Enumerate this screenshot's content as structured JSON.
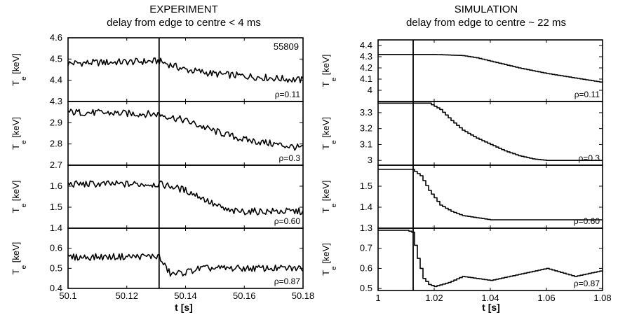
{
  "chart_data": [
    {
      "type": "line",
      "column_title": "EXPERIMENT",
      "column_subtitle": "delay from edge to centre < 4 ms",
      "xlabel": "t [s]",
      "xlim": [
        50.1,
        50.18
      ],
      "xticks": [
        50.1,
        50.12,
        50.14,
        50.16,
        50.18
      ],
      "xtick_labels": [
        "50.1",
        "50.12",
        "50.14",
        "50.16",
        "50.18"
      ],
      "marker_line_x": 50.131,
      "shot_number": "55809",
      "panels": [
        {
          "rho_label": "ρ=0.11",
          "ylabel": "T_e [keV]",
          "ylim": [
            4.3,
            4.6
          ],
          "yticks": [
            4.3,
            4.4,
            4.5,
            4.6
          ],
          "ytick_labels": [
            "4.3",
            "4.4",
            "4.5",
            "4.6"
          ],
          "series": [
            {
              "x": [
                50.1,
                50.131,
                50.14,
                50.15,
                50.16,
                50.17,
                50.18
              ],
              "y": [
                4.48,
                4.49,
                4.45,
                4.43,
                4.42,
                4.41,
                4.4
              ]
            }
          ]
        },
        {
          "rho_label": "ρ=0.3",
          "ylabel": "T_e [keV]",
          "ylim": [
            2.7,
            3.0
          ],
          "yticks": [
            2.7,
            2.8,
            2.9
          ],
          "ytick_labels": [
            "2.7",
            "2.8",
            "2.9"
          ],
          "series": [
            {
              "x": [
                50.1,
                50.131,
                50.14,
                50.15,
                50.16,
                50.17,
                50.18
              ],
              "y": [
                2.95,
                2.94,
                2.91,
                2.86,
                2.82,
                2.8,
                2.78
              ]
            }
          ]
        },
        {
          "rho_label": "ρ=0.60",
          "ylabel": "T_e [keV]",
          "ylim": [
            1.4,
            1.7
          ],
          "yticks": [
            1.4,
            1.5,
            1.6
          ],
          "ytick_labels": [
            "1.4",
            "1.5",
            "1.6"
          ],
          "series": [
            {
              "x": [
                50.1,
                50.131,
                50.135,
                50.14,
                50.145,
                50.15,
                50.155,
                50.18
              ],
              "y": [
                1.61,
                1.61,
                1.6,
                1.58,
                1.55,
                1.51,
                1.48,
                1.48
              ]
            }
          ]
        },
        {
          "rho_label": "ρ=0.87",
          "ylabel": "T_e [keV]",
          "ylim": [
            0.4,
            0.7
          ],
          "yticks": [
            0.4,
            0.5,
            0.6
          ],
          "ytick_labels": [
            "0.4",
            "0.5",
            "0.6"
          ],
          "series": [
            {
              "x": [
                50.1,
                50.131,
                50.132,
                50.135,
                50.14,
                50.145,
                50.18
              ],
              "y": [
                0.555,
                0.56,
                0.53,
                0.47,
                0.48,
                0.5,
                0.5
              ]
            }
          ]
        }
      ]
    },
    {
      "type": "line",
      "column_title": "SIMULATION",
      "column_subtitle": "delay from edge to centre ~ 22 ms",
      "xlabel": "t [s]",
      "xlim": [
        1.0,
        1.08
      ],
      "xticks": [
        1.0,
        1.02,
        1.04,
        1.06,
        1.08
      ],
      "xtick_labels": [
        "1",
        "1.02",
        "1.04",
        "1.06",
        "1.08"
      ],
      "marker_line_x": 1.0125,
      "panels": [
        {
          "rho_label": "ρ=0.11",
          "ylabel": "T_e [keV]",
          "ylim": [
            3.9,
            4.45
          ],
          "yticks": [
            4.0,
            4.1,
            4.2,
            4.3,
            4.4
          ],
          "ytick_labels": [
            "4",
            "4.1",
            "4.2",
            "4.3",
            "4.4"
          ],
          "series": [
            {
              "x": [
                1.0,
                1.01,
                1.02,
                1.03,
                1.035,
                1.04,
                1.05,
                1.06,
                1.07,
                1.08
              ],
              "y": [
                4.32,
                4.32,
                4.32,
                4.31,
                4.29,
                4.26,
                4.2,
                4.15,
                4.11,
                4.07
              ]
            }
          ]
        },
        {
          "rho_label": "ρ=0.3",
          "ylabel": "T_e [keV]",
          "ylim": [
            2.97,
            3.37
          ],
          "yticks": [
            3.0,
            3.1,
            3.2,
            3.3
          ],
          "ytick_labels": [
            "3",
            "3.1",
            "3.2",
            "3.3"
          ],
          "series": [
            {
              "x": [
                1.0,
                1.018,
                1.022,
                1.026,
                1.03,
                1.035,
                1.04,
                1.045,
                1.05,
                1.055,
                1.06,
                1.07,
                1.08
              ],
              "y": [
                3.36,
                3.36,
                3.32,
                3.25,
                3.19,
                3.14,
                3.1,
                3.06,
                3.03,
                3.01,
                3.0,
                3.0,
                3.0
              ]
            }
          ]
        },
        {
          "rho_label": "ρ=0.60",
          "ylabel": "T_e [keV]",
          "ylim": [
            1.3,
            1.6
          ],
          "yticks": [
            1.3,
            1.4,
            1.5
          ],
          "ytick_labels": [
            "1.3",
            "1.4",
            "1.5"
          ],
          "series": [
            {
              "x": [
                1.0,
                1.012,
                1.015,
                1.018,
                1.022,
                1.026,
                1.03,
                1.035,
                1.04,
                1.05,
                1.06,
                1.08
              ],
              "y": [
                1.58,
                1.58,
                1.55,
                1.48,
                1.41,
                1.38,
                1.36,
                1.35,
                1.34,
                1.34,
                1.34,
                1.34
              ]
            }
          ]
        },
        {
          "rho_label": "ρ=0.87",
          "ylabel": "T_e [keV]",
          "ylim": [
            0.49,
            0.8
          ],
          "yticks": [
            0.5,
            0.6,
            0.7
          ],
          "ytick_labels": [
            "0.5",
            "0.6",
            "0.7"
          ],
          "series": [
            {
              "x": [
                1.0,
                1.01,
                1.012,
                1.014,
                1.016,
                1.018,
                1.02,
                1.025,
                1.03,
                1.04,
                1.05,
                1.06,
                1.07,
                1.08
              ],
              "y": [
                0.79,
                0.79,
                0.78,
                0.65,
                0.55,
                0.52,
                0.51,
                0.53,
                0.56,
                0.54,
                0.57,
                0.6,
                0.56,
                0.59
              ]
            }
          ]
        }
      ]
    }
  ]
}
